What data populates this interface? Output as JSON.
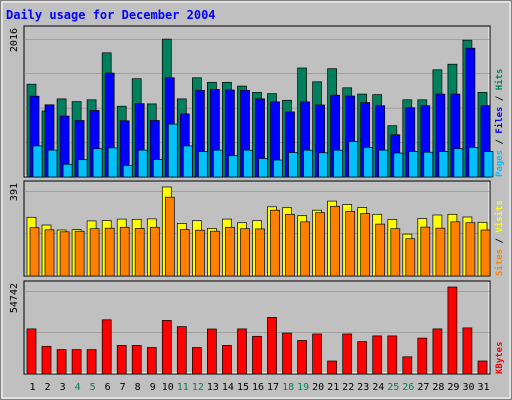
{
  "chart_data": {
    "type": "bar",
    "title": "Daily usage for December 2004",
    "categories": [
      "1",
      "2",
      "3",
      "4",
      "5",
      "6",
      "7",
      "8",
      "9",
      "10",
      "11",
      "12",
      "13",
      "14",
      "15",
      "16",
      "17",
      "18",
      "19",
      "20",
      "21",
      "22",
      "23",
      "24",
      "25",
      "26",
      "27",
      "28",
      "29",
      "30",
      "31"
    ],
    "weekend_days": [
      4,
      5,
      11,
      12,
      18,
      19,
      25,
      26
    ],
    "panels": [
      {
        "id": "pages-files-hits",
        "ymax": 2016,
        "ymax_label": "2016",
        "series": [
          {
            "name": "Hits",
            "color": "#00805c",
            "values": [
              1290,
              918,
              1086,
              1048,
              1073,
              1727,
              985,
              1367,
              1016,
              1917,
              1086,
              1379,
              1317,
              1317,
              1264,
              1176,
              1160,
              1067,
              1515,
              1324,
              1506,
              1240,
              1153,
              1145,
              713,
              1073,
              1073,
              1491,
              1569,
              1902,
              1176
            ]
          },
          {
            "name": "Files",
            "color": "#0000ff",
            "values": [
              1123,
              1004,
              847,
              785,
              925,
              1445,
              781,
              1019,
              785,
              1379,
              878,
              1206,
              1218,
              1210,
              1206,
              1087,
              1044,
              905,
              1044,
              1001,
              1137,
              1126,
              1035,
              991,
              587,
              964,
              991,
              1152,
              1152,
              1791,
              991
            ]
          },
          {
            "name": "Pages",
            "color": "#00c0ff",
            "values": [
              432,
              374,
              177,
              240,
              393,
              405,
              160,
              374,
              245,
              735,
              432,
              354,
              374,
              296,
              373,
              257,
              236,
              341,
              373,
              337,
              373,
              494,
              412,
              374,
              334,
              354,
              345,
              354,
              393,
              413,
              354
            ]
          }
        ]
      },
      {
        "id": "visits-sites",
        "ymax": 391,
        "ymax_label": "391",
        "series": [
          {
            "name": "Visits",
            "color": "#ffff00",
            "values": [
              258,
              224,
              202,
              204,
              242,
              244,
              250,
              249,
              251,
              391,
              231,
              243,
              209,
              250,
              234,
              243,
              304,
              300,
              265,
              289,
              329,
              314,
              301,
              271,
              248,
              184,
              252,
              268,
              271,
              259,
              236
            ]
          },
          {
            "name": "Sites",
            "color": "#ff8000",
            "values": [
              212,
              203,
              194,
              197,
              208,
              210,
              214,
              209,
              214,
              346,
              204,
              201,
              197,
              214,
              208,
              207,
              289,
              271,
              238,
              278,
              306,
              284,
              274,
              228,
              208,
              164,
              215,
              210,
              238,
              234,
              202
            ]
          }
        ]
      },
      {
        "id": "kbytes",
        "ymax": 54742,
        "ymax_label": "54742",
        "series": [
          {
            "name": "KBytes",
            "color": "#ff0000",
            "values": [
              28400,
              17400,
              15350,
              15350,
              15350,
              34100,
              18000,
              18000,
              16650,
              33700,
              29800,
              16650,
              28300,
              18000,
              28400,
              23700,
              35600,
              25800,
              21100,
              25200,
              8200,
              25200,
              20400,
              24000,
              24000,
              10800,
              22600,
              28400,
              54742,
              29000,
              8200
            ]
          }
        ]
      }
    ],
    "legend_right": [
      {
        "text": "Pages",
        "color": "#00c0ff"
      },
      {
        "text": "Files",
        "color": "#0000ff"
      },
      {
        "text": "Hits",
        "color": "#00805c"
      },
      {
        "text": "Sites",
        "color": "#ff8000"
      },
      {
        "text": "Visits",
        "color": "#ffff00"
      },
      {
        "text": "KBytes",
        "color": "#ff0000"
      }
    ],
    "colors": {
      "background": "#c0c0c0",
      "plot_bg": "#c0c0c0",
      "title": "#0000ff",
      "axis_text": "#000000",
      "weekend_text": "#00805c",
      "grid": "#808080"
    }
  }
}
